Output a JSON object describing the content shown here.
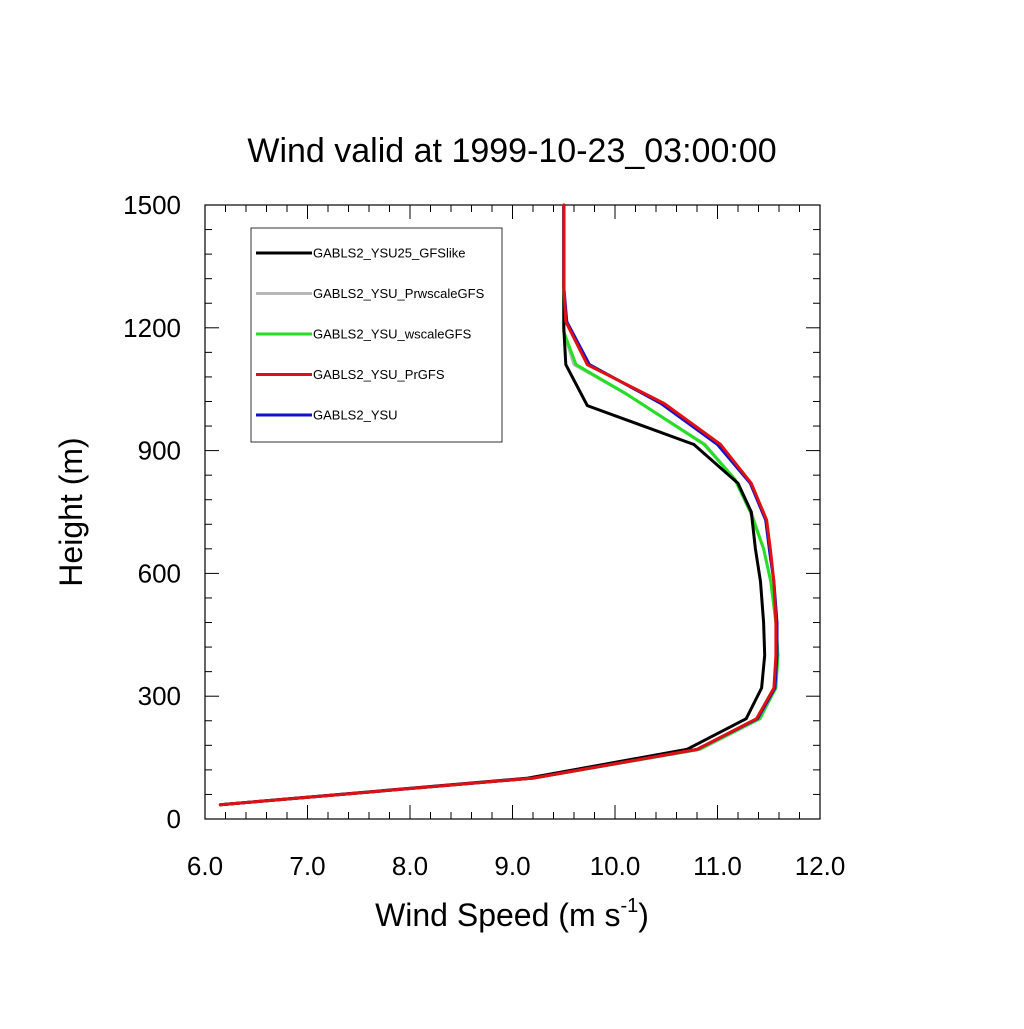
{
  "chart_data": {
    "type": "line",
    "title": "Wind valid at 1999-10-23_03:00:00",
    "xlabel": {
      "main": "Wind Speed (m s",
      "sup": "-1",
      "close": ")"
    },
    "ylabel": "Height (m)",
    "xlim": [
      6.0,
      12.0
    ],
    "ylim": [
      0,
      1500
    ],
    "x_ticks": [
      6.0,
      7.0,
      8.0,
      9.0,
      10.0,
      11.0,
      12.0
    ],
    "x_tick_labels": [
      "6.0",
      "7.0",
      "8.0",
      "9.0",
      "10.0",
      "11.0",
      "12.0"
    ],
    "y_ticks": [
      0,
      300,
      600,
      900,
      1200,
      1500
    ],
    "y_tick_labels": [
      "0",
      "300",
      "600",
      "900",
      "1200",
      "1500"
    ],
    "grid": false,
    "legend_position": "top-left",
    "series": [
      {
        "name": "GABLS2_YSU25_GFSlike",
        "color": "#000000",
        "points": [
          [
            6.15,
            35
          ],
          [
            9.15,
            100
          ],
          [
            10.7,
            170
          ],
          [
            11.28,
            245
          ],
          [
            11.43,
            320
          ],
          [
            11.46,
            400
          ],
          [
            11.45,
            480
          ],
          [
            11.42,
            580
          ],
          [
            11.37,
            660
          ],
          [
            11.33,
            750
          ],
          [
            11.2,
            820
          ],
          [
            10.77,
            915
          ],
          [
            9.73,
            1010
          ],
          [
            9.52,
            1110
          ],
          [
            9.5,
            1200
          ],
          [
            9.5,
            1300
          ],
          [
            9.5,
            1400
          ],
          [
            9.5,
            1500
          ]
        ]
      },
      {
        "name": "GABLS2_YSU_PrwscaleGFS",
        "color": "#b8b8b8",
        "points": [
          [
            6.15,
            35
          ],
          [
            9.2,
            100
          ],
          [
            10.83,
            170
          ],
          [
            11.42,
            245
          ],
          [
            11.56,
            320
          ],
          [
            11.58,
            400
          ],
          [
            11.57,
            480
          ],
          [
            11.52,
            580
          ],
          [
            11.45,
            660
          ],
          [
            11.33,
            750
          ],
          [
            11.17,
            830
          ],
          [
            10.88,
            915
          ],
          [
            10.1,
            1040
          ],
          [
            9.6,
            1110
          ],
          [
            9.5,
            1190
          ],
          [
            9.5,
            1300
          ],
          [
            9.5,
            1400
          ],
          [
            9.5,
            1500
          ]
        ]
      },
      {
        "name": "GABLS2_YSU_wscaleGFS",
        "color": "#22e022",
        "points": [
          [
            6.15,
            35
          ],
          [
            9.2,
            100
          ],
          [
            10.82,
            170
          ],
          [
            11.41,
            245
          ],
          [
            11.57,
            320
          ],
          [
            11.59,
            400
          ],
          [
            11.57,
            480
          ],
          [
            11.52,
            580
          ],
          [
            11.45,
            660
          ],
          [
            11.32,
            750
          ],
          [
            11.17,
            830
          ],
          [
            10.87,
            915
          ],
          [
            10.1,
            1040
          ],
          [
            9.62,
            1110
          ],
          [
            9.5,
            1190
          ],
          [
            9.5,
            1300
          ],
          [
            9.5,
            1400
          ],
          [
            9.5,
            1500
          ]
        ]
      },
      {
        "name": "GABLS2_YSU_PrGFS",
        "color": "#e01010",
        "points": [
          [
            6.15,
            35
          ],
          [
            9.2,
            100
          ],
          [
            10.8,
            170
          ],
          [
            11.38,
            245
          ],
          [
            11.55,
            320
          ],
          [
            11.57,
            400
          ],
          [
            11.57,
            480
          ],
          [
            11.55,
            580
          ],
          [
            11.52,
            650
          ],
          [
            11.48,
            730
          ],
          [
            11.33,
            820
          ],
          [
            11.03,
            915
          ],
          [
            10.48,
            1015
          ],
          [
            9.73,
            1110
          ],
          [
            9.52,
            1215
          ],
          [
            9.5,
            1300
          ],
          [
            9.5,
            1400
          ],
          [
            9.5,
            1500
          ]
        ]
      },
      {
        "name": "GABLS2_YSU",
        "color": "#1010d0",
        "points": [
          [
            6.15,
            35
          ],
          [
            9.2,
            100
          ],
          [
            10.8,
            170
          ],
          [
            11.39,
            245
          ],
          [
            11.56,
            320
          ],
          [
            11.58,
            400
          ],
          [
            11.58,
            480
          ],
          [
            11.55,
            580
          ],
          [
            11.51,
            650
          ],
          [
            11.47,
            730
          ],
          [
            11.32,
            820
          ],
          [
            11.0,
            915
          ],
          [
            10.45,
            1015
          ],
          [
            9.75,
            1110
          ],
          [
            9.53,
            1215
          ],
          [
            9.5,
            1300
          ],
          [
            9.5,
            1400
          ],
          [
            9.5,
            1500
          ]
        ]
      }
    ]
  }
}
